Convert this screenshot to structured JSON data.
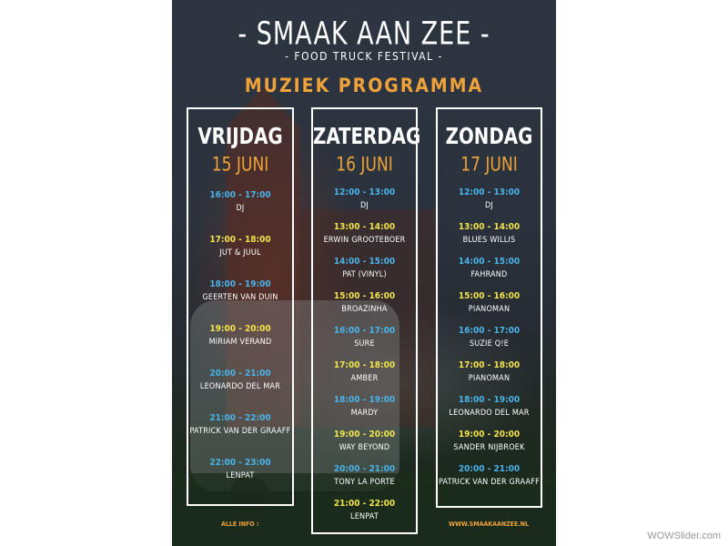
{
  "header": {
    "title": "- SMAAK AAN ZEE -",
    "subtitle": "- FOOD TRUCK FESTIVAL -",
    "program": "MUZIEK PROGRAMMA"
  },
  "days": [
    {
      "name": "VRIJDAG",
      "date": "15 JUNI",
      "slots": [
        {
          "time": "16:00 - 17:00",
          "act": "DJ"
        },
        {
          "time": "17:00 - 18:00",
          "act": "JUT & JUUL"
        },
        {
          "time": "18:00 - 19:00",
          "act": "GEERTEN VAN DUIN"
        },
        {
          "time": "19:00 - 20:00",
          "act": "MIRIAM VERAND"
        },
        {
          "time": "20:00 - 21:00",
          "act": "LEONARDO DEL MAR"
        },
        {
          "time": "21:00 - 22:00",
          "act": "PATRICK VAN DER GRAAFF"
        },
        {
          "time": "22:00 - 23:00",
          "act": "LENPAT"
        }
      ]
    },
    {
      "name": "ZATERDAG",
      "date": "16 JUNI",
      "slots": [
        {
          "time": "12:00 - 13:00",
          "act": "DJ"
        },
        {
          "time": "13:00 - 14:00",
          "act": "ERWIN GROOTEBOER"
        },
        {
          "time": "14:00 - 15:00",
          "act": "PAT (VINYL)"
        },
        {
          "time": "15:00 - 16:00",
          "act": "BROAZINHA"
        },
        {
          "time": "16:00 - 17:00",
          "act": "SURE"
        },
        {
          "time": "17:00 - 18:00",
          "act": "AMBER"
        },
        {
          "time": "18:00 - 19:00",
          "act": "MARDY"
        },
        {
          "time": "19:00 - 20:00",
          "act": "WAY BEYOND"
        },
        {
          "time": "20:00 - 21:00",
          "act": "TONY LA PORTE"
        },
        {
          "time": "21:00 - 22:00",
          "act": "LENPAT"
        }
      ]
    },
    {
      "name": "ZONDAG",
      "date": "17 JUNI",
      "slots": [
        {
          "time": "12:00 - 13:00",
          "act": "DJ"
        },
        {
          "time": "13:00 - 14:00",
          "act": "BLUES WILLIS"
        },
        {
          "time": "14:00 - 15:00",
          "act": "FAHRAND"
        },
        {
          "time": "15:00 - 16:00",
          "act": "PIANOMAN"
        },
        {
          "time": "16:00 - 17:00",
          "act": "SUZIE Q!E"
        },
        {
          "time": "17:00 - 18:00",
          "act": "PIANOMAN"
        },
        {
          "time": "18:00 - 19:00",
          "act": "LEONARDO DEL MAR"
        },
        {
          "time": "19:00 - 20:00",
          "act": "SANDER NIJBROEK"
        },
        {
          "time": "20:00 - 21:00",
          "act": "PATRICK VAN DER GRAAFF"
        }
      ]
    }
  ],
  "footer": {
    "info_label": "ALLE INFO :",
    "website": "WWW.SMAAKAANZEE.NL"
  },
  "watermark": "WOWSlider.com",
  "colors": {
    "accent_orange": "#f0a23a",
    "time_blue": "#49b3ea",
    "time_yellow": "#f2e34a"
  }
}
